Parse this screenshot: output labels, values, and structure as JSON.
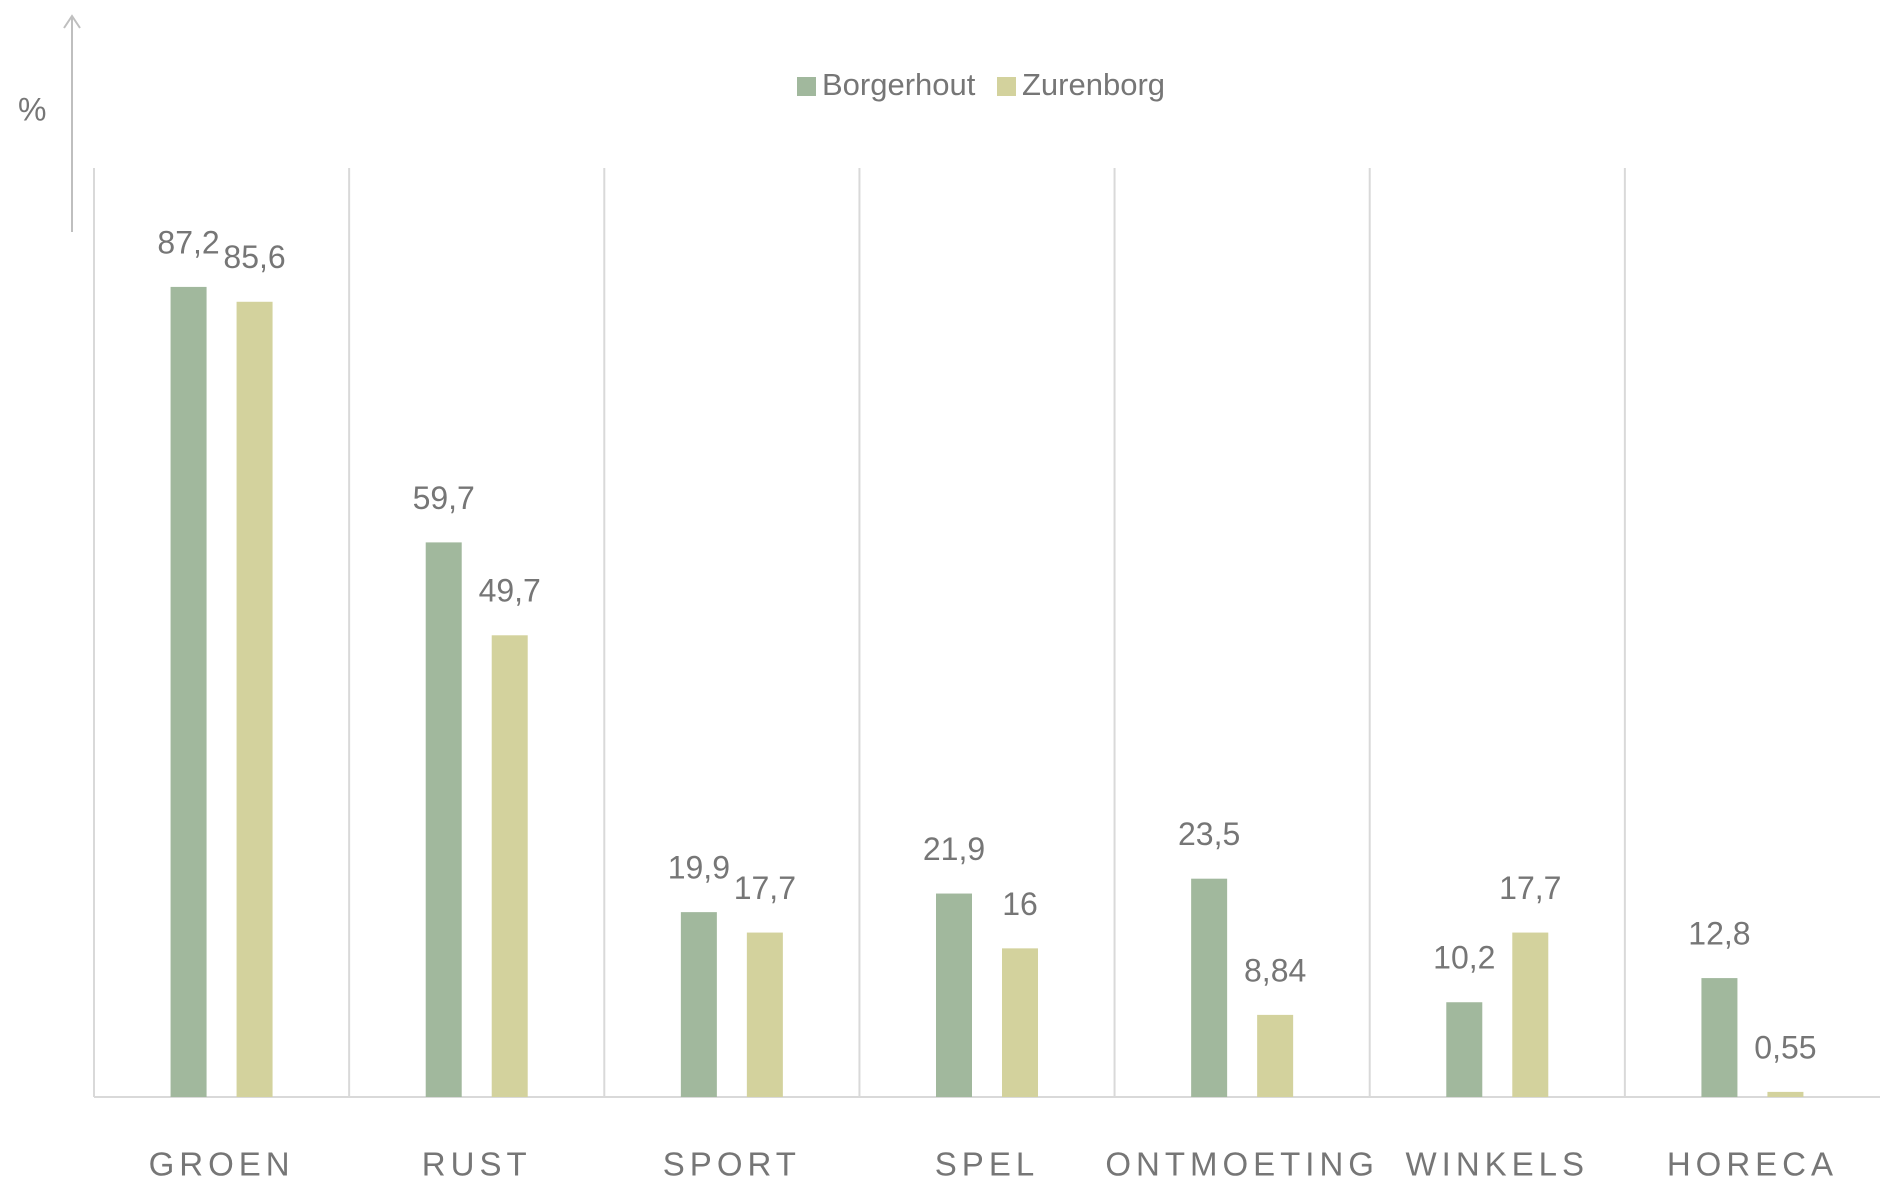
{
  "chart_data": {
    "type": "bar",
    "y_label": "%",
    "categories": [
      "GROEN",
      "RUST",
      "SPORT",
      "SPEL",
      "ONTMOETING",
      "WINKELS",
      "HORECA"
    ],
    "series": [
      {
        "name": "Borgerhout",
        "color": "#a1b89d",
        "values": [
          87.2,
          59.7,
          19.9,
          21.9,
          23.5,
          10.2,
          12.8
        ],
        "value_labels": [
          "87,2",
          "59,7",
          "19,9",
          "21,9",
          "23,5",
          "10,2",
          "12,8"
        ]
      },
      {
        "name": "Zurenborg",
        "color": "#d3d29d",
        "values": [
          85.6,
          49.7,
          17.7,
          16,
          8.84,
          17.7,
          0.55
        ],
        "value_labels": [
          "85,6",
          "49,7",
          "17,7",
          "16",
          "8,84",
          "17,7",
          "0,55"
        ]
      }
    ],
    "ylim": [
      0,
      100
    ],
    "legend": "top"
  }
}
